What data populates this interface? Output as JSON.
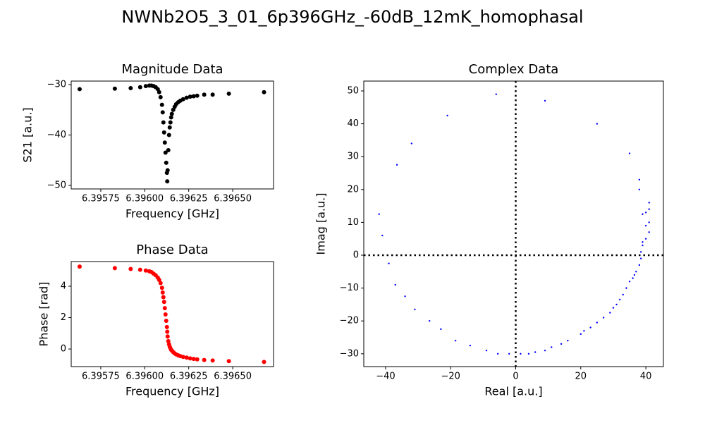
{
  "title": "NWNb2O5_3_01_6p396GHz_-60dB_12mK_homophasal",
  "chart_data": [
    {
      "type": "scatter",
      "title": "Magnitude Data",
      "xlabel": "Frequency [GHz]",
      "ylabel": "S21 [a.u.]",
      "color": "#000000",
      "x": [
        6.39563,
        6.39583,
        6.39592,
        6.395974,
        6.396006,
        6.396026,
        6.396038,
        6.39605,
        6.396062,
        6.396074,
        6.396082,
        6.39609,
        6.396098,
        6.396102,
        6.396106,
        6.39611,
        6.396114,
        6.396118,
        6.396122,
        6.396126,
        6.396128,
        6.39613,
        6.396134,
        6.396138,
        6.396142,
        6.396146,
        6.39615,
        6.396154,
        6.396162,
        6.39617,
        6.396178,
        6.39619,
        6.396202,
        6.396218,
        6.396238,
        6.396258,
        6.396278,
        6.396298,
        6.396338,
        6.396386,
        6.396478,
        6.396678
      ],
      "values": [
        -30.9,
        -30.8,
        -30.7,
        -30.5,
        -30.3,
        -30.2,
        -30.2,
        -30.3,
        -30.5,
        -30.9,
        -31.5,
        -32.5,
        -34,
        -35.5,
        -37.5,
        -39.5,
        -41.5,
        -43.5,
        -45.5,
        -47.5,
        -49.2,
        -47,
        -43,
        -40,
        -38.5,
        -37.5,
        -36.5,
        -35.8,
        -35,
        -34.4,
        -33.9,
        -33.5,
        -33.2,
        -32.9,
        -32.6,
        -32.4,
        -32.3,
        -32.2,
        -32,
        -32,
        -31.8,
        -31.5
      ],
      "xlim": [
        6.395582,
        6.396732
      ],
      "ylim": [
        -50.7,
        -29.3
      ],
      "xticks": [
        6.39575,
        {
          "value": 6.396,
          "label": "6.39600"
        },
        6.39625,
        {
          "value": 6.3965,
          "label": "6.39650"
        }
      ],
      "yticks": [
        {
          "value": -30,
          "label": "−30"
        },
        {
          "value": -40,
          "label": "−40"
        },
        {
          "value": -50,
          "label": "−50"
        }
      ]
    },
    {
      "type": "scatter",
      "title": "Phase Data",
      "xlabel": "Frequency [GHz]",
      "ylabel": "Phase [rad]",
      "color": "#ff0000",
      "x": [
        6.39563,
        6.39583,
        6.39592,
        6.395974,
        6.396006,
        6.396026,
        6.396038,
        6.39605,
        6.396062,
        6.396074,
        6.396082,
        6.39609,
        6.396098,
        6.396102,
        6.396106,
        6.39611,
        6.396114,
        6.396118,
        6.396122,
        6.396126,
        6.396128,
        6.39613,
        6.396134,
        6.396138,
        6.396142,
        6.396146,
        6.39615,
        6.396154,
        6.396162,
        6.39617,
        6.396178,
        6.39619,
        6.396202,
        6.396218,
        6.396238,
        6.396258,
        6.396278,
        6.396298,
        6.396338,
        6.396386,
        6.396478,
        6.396678
      ],
      "values": [
        5.25,
        5.15,
        5.1,
        5.05,
        5,
        4.95,
        4.9,
        4.8,
        4.7,
        4.55,
        4.4,
        4.2,
        3.9,
        3.6,
        3.3,
        3,
        2.6,
        2.2,
        1.8,
        1.4,
        1.1,
        0.8,
        0.5,
        0.3,
        0.15,
        0.05,
        -0.05,
        -0.1,
        -0.2,
        -0.28,
        -0.34,
        -0.4,
        -0.45,
        -0.5,
        -0.55,
        -0.6,
        -0.63,
        -0.66,
        -0.7,
        -0.73,
        -0.77,
        -0.82
      ],
      "xlim": [
        6.395582,
        6.396732
      ],
      "ylim": [
        -1.12,
        5.57
      ],
      "xticks": [
        6.39575,
        {
          "value": 6.396,
          "label": "6.39600"
        },
        6.39625,
        {
          "value": 6.3965,
          "label": "6.39650"
        }
      ],
      "yticks": [
        0,
        2,
        4
      ]
    },
    {
      "type": "scatter",
      "title": "Complex Data",
      "xlabel": "Real [a.u.]",
      "ylabel": "Imag [a.u.]",
      "color": "#0000ff",
      "hline": 0,
      "vline": 0,
      "x": [
        -6,
        9,
        25,
        35,
        38,
        38,
        41,
        41,
        40,
        39,
        41,
        40,
        41,
        40,
        39,
        39,
        38.5,
        38.5,
        38,
        37,
        36.5,
        36,
        35,
        34,
        33,
        32,
        31,
        30,
        29,
        27,
        25,
        23,
        21,
        20,
        16,
        14,
        11,
        9,
        6,
        4,
        1.5,
        -2,
        -5.5,
        -9,
        -14,
        -18.5,
        -23,
        -26.5,
        -31,
        -34,
        -37,
        -39,
        -41,
        -42,
        -36.5,
        -32,
        -21
      ],
      "values": [
        49,
        47,
        40,
        31,
        23,
        20,
        16,
        14,
        13,
        12.5,
        10,
        9,
        7,
        5,
        4,
        3,
        1,
        -1,
        -3,
        -5,
        -6,
        -7,
        -8,
        -10,
        -12,
        -13.5,
        -15,
        -16,
        -17.5,
        -19,
        -20.5,
        -22,
        -23,
        -24,
        -26,
        -27,
        -28,
        -29,
        -29.5,
        -30,
        -30,
        -30,
        -30,
        -29,
        -27.5,
        -26,
        -22.5,
        -20,
        -16.5,
        -12.5,
        -9,
        -2.5,
        6,
        12.5,
        27.5,
        34,
        42.5
      ],
      "xlim": [
        -46.7,
        45.4
      ],
      "ylim": [
        -33.9,
        53
      ],
      "xticks": [
        {
          "value": -40,
          "label": "−40"
        },
        {
          "value": -20,
          "label": "−20"
        },
        0,
        20,
        40
      ],
      "yticks": [
        {
          "value": -30,
          "label": "−30"
        },
        {
          "value": -20,
          "label": "−20"
        },
        {
          "value": -10,
          "label": "−10"
        },
        0,
        10,
        20,
        30,
        40,
        50
      ]
    }
  ]
}
